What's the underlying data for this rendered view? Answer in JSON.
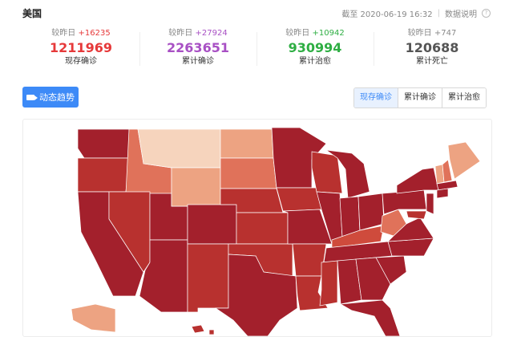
{
  "header": {
    "title": "美国",
    "as_of": "截至 2020-06-19 16:32",
    "explain": "数据说明"
  },
  "stats": [
    {
      "delta_label": "较昨日",
      "delta": "+16235",
      "value": "1211969",
      "label": "现存确诊",
      "delta_color": "#e6393a",
      "value_color": "#e6393a"
    },
    {
      "delta_label": "较昨日",
      "delta": "+27924",
      "value": "2263651",
      "label": "累计确诊",
      "delta_color": "#a850c4",
      "value_color": "#a850c4"
    },
    {
      "delta_label": "较昨日",
      "delta": "+10942",
      "value": "930994",
      "label": "累计治愈",
      "delta_color": "#2eae43",
      "value_color": "#2eae43"
    },
    {
      "delta_label": "较昨日",
      "delta": "+747",
      "value": "120688",
      "label": "累计死亡",
      "delta_color": "#888888",
      "value_color": "#555555"
    }
  ],
  "controls": {
    "trend_button": "动态趋势",
    "tabs": [
      "现存确诊",
      "累计确诊",
      "累计治愈"
    ],
    "active_tab": 0
  },
  "map": {
    "icon": "us-choropleth-map",
    "colors": {
      "darkest": "#a3202c",
      "dark": "#b8312f",
      "medium": "#cf4b3c",
      "light": "#e0725a",
      "lighter": "#eda382",
      "lightest": "#f6d4bd"
    }
  }
}
